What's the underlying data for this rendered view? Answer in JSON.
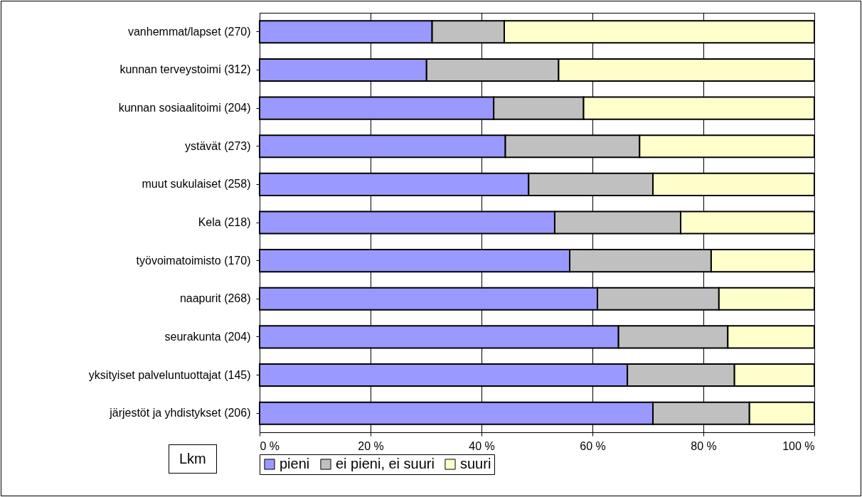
{
  "chart_data": {
    "type": "bar",
    "orientation": "horizontal",
    "stacked": true,
    "categories": [
      "vanhemmat/lapset  (270)",
      "kunnan terveystoimi (312)",
      "kunnan sosiaalitoimi (204)",
      "ystävät (273)",
      "muut sukulaiset (258)",
      "Kela (218)",
      "työvoimatoimisto (170)",
      "naapurit (268)",
      "seurakunta (204)",
      "yksityiset palveluntuottajat (145)",
      "järjestöt ja yhdistykset (206)"
    ],
    "series": [
      {
        "name": "pieni",
        "color": "#9999ff",
        "values": [
          31.1,
          30.1,
          42.2,
          44.3,
          48.5,
          53.2,
          55.9,
          60.9,
          64.7,
          66.3,
          70.9
        ]
      },
      {
        "name": "ei pieni, ei suuri",
        "color": "#c0c0c0",
        "values": [
          13.0,
          23.8,
          16.2,
          24.2,
          22.4,
          22.7,
          25.5,
          21.9,
          19.7,
          19.3,
          17.4
        ]
      },
      {
        "name": "suuri",
        "color": "#ffffcc",
        "values": [
          55.9,
          46.1,
          41.6,
          31.5,
          29.1,
          24.1,
          18.6,
          17.2,
          15.6,
          14.4,
          11.7
        ]
      }
    ],
    "xlim": [
      0,
      100
    ],
    "xticks": [
      {
        "value": 0,
        "label": "0 %"
      },
      {
        "value": 20,
        "label": "20 %"
      },
      {
        "value": 40,
        "label": "40 %"
      },
      {
        "value": 60,
        "label": "60 %"
      },
      {
        "value": 80,
        "label": "80 %"
      },
      {
        "value": 100,
        "label": "100 %"
      }
    ],
    "grid": "x",
    "legend": "bottom",
    "annotations": [
      "Lkm"
    ]
  }
}
